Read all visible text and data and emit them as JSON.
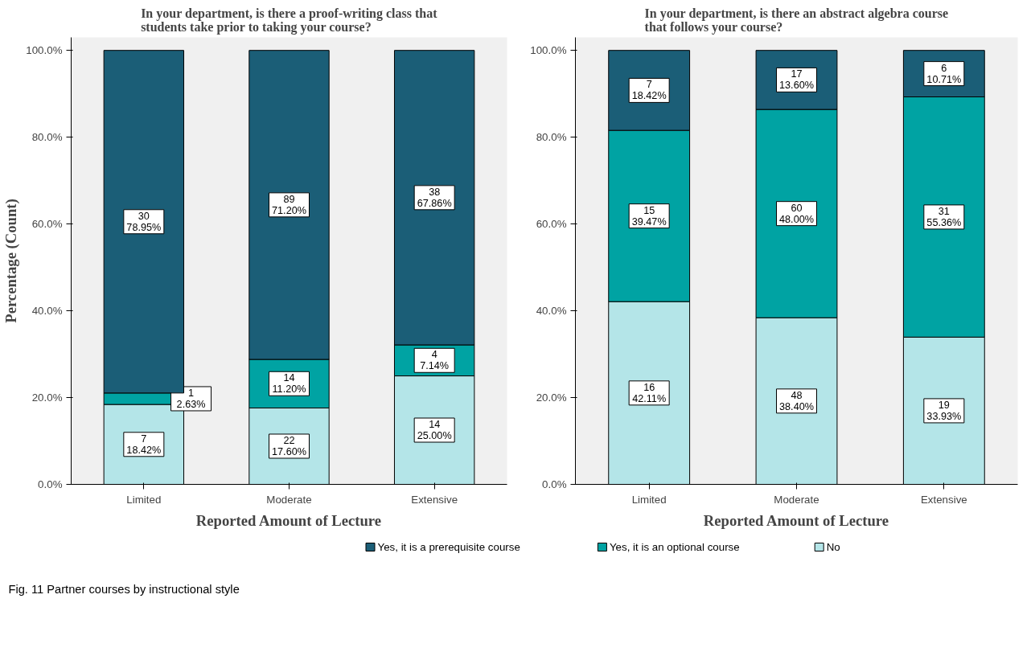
{
  "chart_data": [
    {
      "type": "bar",
      "stacked": true,
      "title": "In your department, is there a proof-writing class that\nstudents take prior to taking your course?",
      "xlabel": "Reported Amount of Lecture",
      "ylabel": "Percentage (Count)",
      "categories": [
        "Limited",
        "Moderate",
        "Extensive"
      ],
      "ylim": [
        0,
        103
      ],
      "yticks": [
        {
          "value": 0,
          "label": "0.0%"
        },
        {
          "value": 20,
          "label": "20.0%"
        },
        {
          "value": 40,
          "label": "40.0%"
        },
        {
          "value": 60,
          "label": "60.0%"
        },
        {
          "value": 80,
          "label": "80.0%"
        },
        {
          "value": 100,
          "label": "100.0%"
        }
      ],
      "grid": false,
      "legend": "bottom",
      "annotations": [
        "Fig. 11 Partner courses by instructional style"
      ],
      "series": [
        {
          "name": "No",
          "color": "#b4e5e8",
          "values": [
            18.42,
            17.6,
            25.0
          ],
          "value_labels": [
            "7\n18.42%",
            "22\n17.60%",
            "14\n25.00%"
          ]
        },
        {
          "name": "Yes, it is an optional course",
          "color": "#00a3a3",
          "values": [
            2.63,
            11.2,
            7.14
          ],
          "value_labels": [
            "1\n2.63%",
            "14\n11.20%",
            "4\n7.14%"
          ]
        },
        {
          "name": "Yes, it is a prerequisite course",
          "color": "#1b5e77",
          "values": [
            78.95,
            71.2,
            67.86
          ],
          "value_labels": [
            "30\n78.95%",
            "89\n71.20%",
            "38\n67.86%"
          ]
        }
      ]
    },
    {
      "type": "bar",
      "stacked": true,
      "title": "In your department, is there an abstract algebra course\nthat follows your course?",
      "xlabel": "Reported Amount of Lecture",
      "categories": [
        "Limited",
        "Moderate",
        "Extensive"
      ],
      "ylim": [
        0,
        103
      ],
      "yticks": [
        {
          "value": 0,
          "label": "0.0%"
        },
        {
          "value": 20,
          "label": "20.0%"
        },
        {
          "value": 40,
          "label": "40.0%"
        },
        {
          "value": 60,
          "label": "60.0%"
        },
        {
          "value": 80,
          "label": "80.0%"
        },
        {
          "value": 100,
          "label": "100.0%"
        }
      ],
      "grid": false,
      "series": [
        {
          "color": "#b4e5e8",
          "values": [
            42.11,
            38.4,
            33.93
          ],
          "value_labels": [
            "16\n42.11%",
            "48\n38.40%",
            "19\n33.93%"
          ]
        },
        {
          "color": "#00a3a3",
          "values": [
            39.47,
            48.0,
            55.36
          ],
          "value_labels": [
            "15\n39.47%",
            "60\n48.00%",
            "31\n55.36%"
          ]
        },
        {
          "color": "#1b5e77",
          "values": [
            18.42,
            13.6,
            10.71
          ],
          "value_labels": [
            "7\n18.42%",
            "17\n13.60%",
            "6\n10.71%"
          ]
        }
      ]
    }
  ]
}
